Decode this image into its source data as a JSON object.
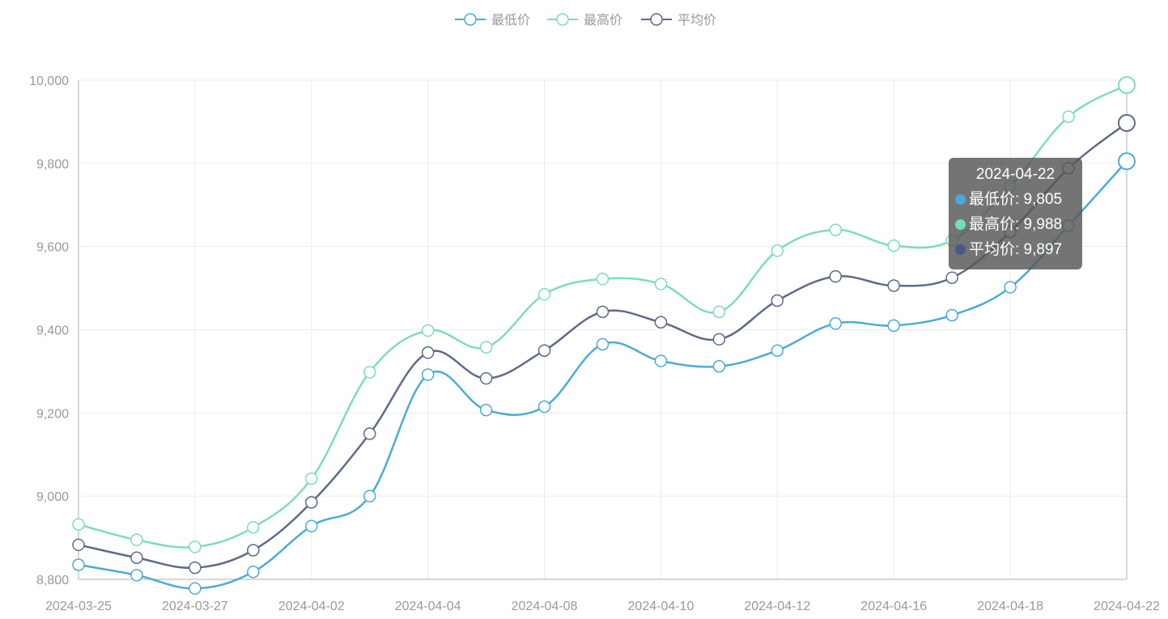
{
  "chart_data": {
    "type": "line",
    "smooth": true,
    "x": [
      "2024-03-25",
      "2024-03-26",
      "2024-03-27",
      "2024-03-29",
      "2024-04-02",
      "2024-04-03",
      "2024-04-04",
      "2024-04-06",
      "2024-04-08",
      "2024-04-09",
      "2024-04-10",
      "2024-04-11",
      "2024-04-12",
      "2024-04-14",
      "2024-04-16",
      "2024-04-17",
      "2024-04-18",
      "2024-04-20",
      "2024-04-22"
    ],
    "x_tick_labels": [
      "2024-03-25",
      "2024-03-27",
      "2024-04-02",
      "2024-04-04",
      "2024-04-08",
      "2024-04-10",
      "2024-04-12",
      "2024-04-16",
      "2024-04-18",
      "2024-04-22"
    ],
    "ylim": [
      8800,
      10000
    ],
    "y_ticks": [
      8800,
      9000,
      9200,
      9400,
      9600,
      9800,
      10000
    ],
    "y_tick_labels": [
      "8,800",
      "9,000",
      "9,200",
      "9,400",
      "9,600",
      "9,800",
      "10,000"
    ],
    "grid": true,
    "legend_position": "top-center",
    "series": [
      {
        "name": "最低价",
        "color": "#4bacd4",
        "values": [
          8835,
          8810,
          8778,
          8818,
          8928,
          9000,
          9292,
          9207,
          9215,
          9365,
          9325,
          9312,
          9350,
          9415,
          9410,
          9435,
          9502,
          9650,
          9805
        ]
      },
      {
        "name": "最高价",
        "color": "#7ddcc0",
        "values": [
          8932,
          8895,
          8878,
          8925,
          9042,
          9298,
          9398,
          9358,
          9485,
          9522,
          9510,
          9443,
          9590,
          9640,
          9602,
          9615,
          9745,
          9912,
          9988
        ]
      },
      {
        "name": "平均价",
        "color": "#5e6a8a",
        "values": [
          8883,
          8852,
          8828,
          8870,
          8985,
          9150,
          9345,
          9283,
          9350,
          9443,
          9418,
          9377,
          9470,
          9528,
          9506,
          9525,
          9635,
          9788,
          9897
        ]
      }
    ]
  },
  "tooltip": {
    "title": "2024-04-22",
    "rows": [
      {
        "label": "最低价: 9,805",
        "color": "#4aa8dc"
      },
      {
        "label": "最高价: 9,988",
        "color": "#6fe0b4"
      },
      {
        "label": "平均价: 9,897",
        "color": "#4b5789"
      }
    ]
  }
}
